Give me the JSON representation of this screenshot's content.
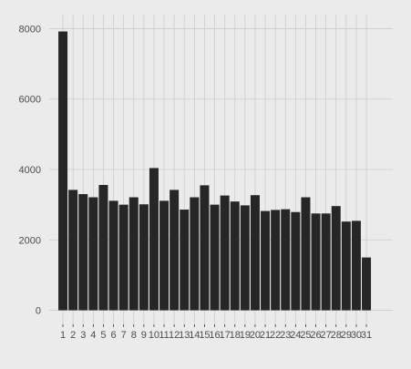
{
  "chart_data": {
    "type": "bar",
    "title": "",
    "xlabel": "",
    "ylabel": "",
    "categories": [
      "1",
      "2",
      "3",
      "4",
      "5",
      "6",
      "7",
      "8",
      "9",
      "10",
      "11",
      "12",
      "13",
      "14",
      "15",
      "16",
      "17",
      "18",
      "19",
      "20",
      "21",
      "22",
      "23",
      "24",
      "25",
      "26",
      "27",
      "28",
      "29",
      "30",
      "31"
    ],
    "values": [
      7920,
      3420,
      3300,
      3210,
      3560,
      3110,
      3000,
      3210,
      3010,
      4040,
      3110,
      3420,
      2860,
      3210,
      3550,
      3000,
      3260,
      3090,
      2980,
      3270,
      2820,
      2850,
      2870,
      2790,
      3210,
      2750,
      2750,
      2960,
      2520,
      2540,
      1500
    ],
    "ylim": [
      -400,
      8400
    ],
    "yticks": [
      0,
      2000,
      4000,
      6000,
      8000
    ],
    "ytick_labels": [
      "0",
      "2000",
      "4000",
      "6000",
      "8000"
    ],
    "grid": true,
    "legend": "none",
    "colors": {
      "background": "#ebebeb",
      "gridline": "#cccccc",
      "bar": "#262626",
      "tick_text": "#4d4d4d"
    }
  }
}
